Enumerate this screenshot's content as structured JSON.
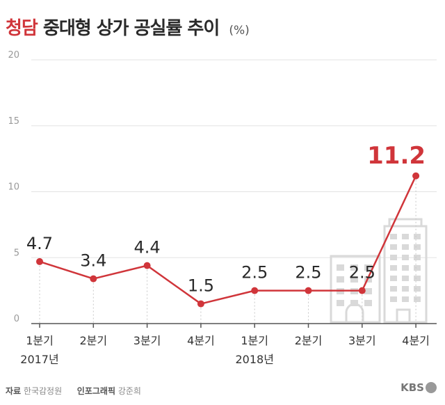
{
  "title": {
    "highlight": "청담",
    "rest": "중대형 상가 공실률 추이",
    "unit": "(%)"
  },
  "chart_data": {
    "type": "line",
    "title": "청담 중대형 상가 공실률 추이",
    "ylabel": "(%)",
    "ylim": [
      0,
      20
    ],
    "yticks": [
      "0",
      "5",
      "10",
      "15",
      "20"
    ],
    "grid": true,
    "categories": [
      "1분기",
      "2분기",
      "3분기",
      "4분기",
      "1분기",
      "2분기",
      "3분기",
      "4분기"
    ],
    "year_labels": [
      {
        "label": "2017년",
        "index": 0
      },
      {
        "label": "2018년",
        "index": 4
      }
    ],
    "series": [
      {
        "name": "공실률",
        "color": "#d0353a",
        "values": [
          4.7,
          3.4,
          4.4,
          1.5,
          2.5,
          2.5,
          2.5,
          11.2
        ]
      }
    ],
    "data_labels": [
      "4.7",
      "3.4",
      "4.4",
      "1.5",
      "2.5",
      "2.5",
      "2.5",
      "11.2"
    ],
    "highlight_index": 7
  },
  "footer": {
    "source_label": "자료",
    "source": "한국감정원",
    "graphic_label": "인포그래픽",
    "graphic": "강준희"
  },
  "logo": {
    "text": "KBS"
  },
  "colors": {
    "accent": "#d0353a",
    "grid": "#e3e3e3",
    "axis": "#555555",
    "building": "#d9d9d9"
  }
}
